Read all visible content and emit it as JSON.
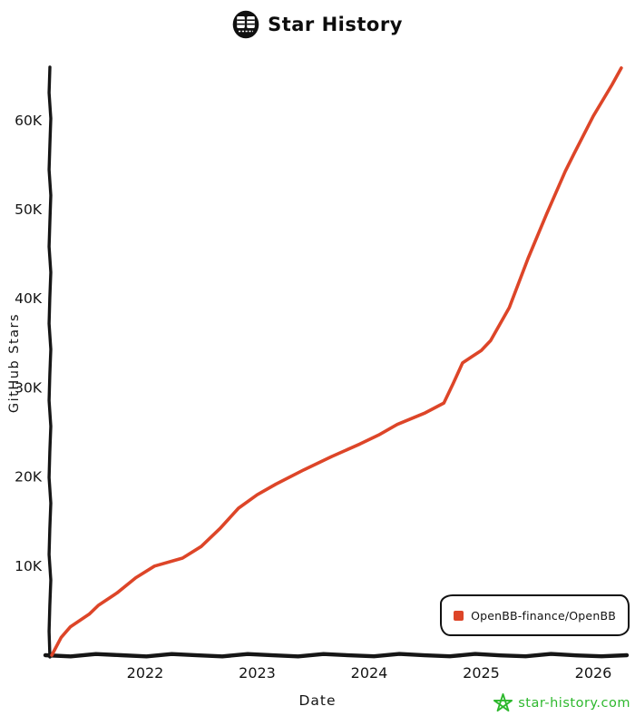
{
  "header": {
    "title": "Star History",
    "logo_icon": "star-history-logo"
  },
  "legend": {
    "position": "bottom-right"
  },
  "watermark": {
    "text": "star-history.com",
    "color": "#2eb82e",
    "star_icon": "green-star-icon"
  },
  "chart_data": {
    "type": "line",
    "title": "Star History",
    "xlabel": "Date",
    "ylabel": "GitHub Stars",
    "grid": false,
    "style": "hand-drawn",
    "legend_position": "bottom-right",
    "axis_color": "#161616",
    "ylim": [
      0,
      66000
    ],
    "xlim": [
      "2021-03",
      "2026-04"
    ],
    "x_ticks": [
      {
        "year": 2022,
        "label": "2022"
      },
      {
        "year": 2023,
        "label": "2023"
      },
      {
        "year": 2024,
        "label": "2024"
      },
      {
        "year": 2025,
        "label": "2025"
      },
      {
        "year": 2026,
        "label": "2026"
      }
    ],
    "y_ticks": [
      {
        "value": 10000,
        "label": "10K"
      },
      {
        "value": 20000,
        "label": "20K"
      },
      {
        "value": 30000,
        "label": "30K"
      },
      {
        "value": 40000,
        "label": "40K"
      },
      {
        "value": 50000,
        "label": "50K"
      },
      {
        "value": 60000,
        "label": "60K"
      }
    ],
    "series": [
      {
        "name": "OpenBB-finance/OpenBB",
        "color": "#dd4528",
        "points": [
          [
            "2021-03",
            0
          ],
          [
            "2021-04",
            2000
          ],
          [
            "2021-05",
            3200
          ],
          [
            "2021-07",
            4600
          ],
          [
            "2021-08",
            5600
          ],
          [
            "2021-10",
            7000
          ],
          [
            "2021-12",
            8700
          ],
          [
            "2022-02",
            10000
          ],
          [
            "2022-05",
            10900
          ],
          [
            "2022-07",
            12200
          ],
          [
            "2022-09",
            14200
          ],
          [
            "2022-11",
            16500
          ],
          [
            "2023-01",
            18000
          ],
          [
            "2023-03",
            19200
          ],
          [
            "2023-06",
            20800
          ],
          [
            "2023-09",
            22300
          ],
          [
            "2023-12",
            23700
          ],
          [
            "2024-02",
            24700
          ],
          [
            "2024-04",
            25900
          ],
          [
            "2024-07",
            27200
          ],
          [
            "2024-09",
            28300
          ],
          [
            "2024-10",
            30500
          ],
          [
            "2024-11",
            32800
          ],
          [
            "2024-12",
            33500
          ],
          [
            "2025-01",
            34200
          ],
          [
            "2025-02",
            35300
          ],
          [
            "2025-04",
            39000
          ],
          [
            "2025-06",
            44500
          ],
          [
            "2025-08",
            49500
          ],
          [
            "2025-10",
            54300
          ],
          [
            "2025-11",
            56400
          ],
          [
            "2026-01",
            60500
          ],
          [
            "2026-03",
            64000
          ],
          [
            "2026-04",
            65900
          ]
        ]
      }
    ]
  }
}
